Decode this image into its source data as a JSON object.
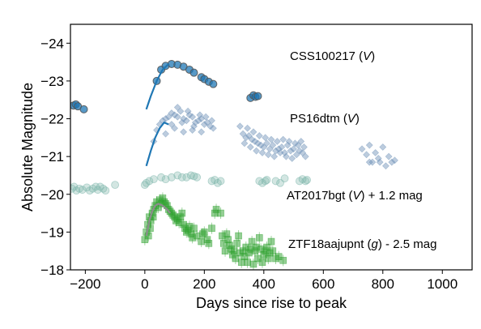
{
  "chart_data": {
    "type": "scatter",
    "title": "",
    "xlabel": "Days since rise to peak",
    "ylabel": "Absolute Magnitude",
    "xlim": [
      -250,
      1100
    ],
    "ylim": [
      -18,
      -24.5
    ],
    "y_inverted": true,
    "grid": false,
    "x_ticks": [
      "-200",
      "0",
      "200",
      "400",
      "600",
      "800",
      "1000"
    ],
    "y_ticks": [
      "-24",
      "-23",
      "-22",
      "-21",
      "-20",
      "-19",
      "-18"
    ],
    "annotations": [
      {
        "name": "CSS100217",
        "text_plain": "CSS100217 (",
        "text_italic": "V",
        "text_end": ")"
      },
      {
        "name": "PS16dtm",
        "text_plain": "PS16dtm (",
        "text_italic": "V",
        "text_end": ")"
      },
      {
        "name": "AT2017bgt",
        "text_plain": "AT2017bgt (",
        "text_italic": "V",
        "text_end": ") + 1.2 mag"
      },
      {
        "name": "ZTF18aajupnt",
        "text_plain": "ZTF18aajupnt (",
        "text_italic": "g",
        "text_end": ") - 2.5 mag"
      }
    ],
    "series": [
      {
        "name": "CSS100217",
        "marker": "circle",
        "color": "#1f77b4",
        "points": [
          [
            -240,
            -22.35
          ],
          [
            -232,
            -22.38
          ],
          [
            -225,
            -22.33
          ],
          [
            -205,
            -22.25
          ],
          [
            40,
            -23.0
          ],
          [
            55,
            -23.3
          ],
          [
            70,
            -23.4
          ],
          [
            90,
            -23.45
          ],
          [
            110,
            -23.43
          ],
          [
            130,
            -23.38
          ],
          [
            150,
            -23.3
          ],
          [
            165,
            -23.22
          ],
          [
            190,
            -23.1
          ],
          [
            200,
            -23.05
          ],
          [
            215,
            -22.98
          ],
          [
            230,
            -22.92
          ],
          [
            355,
            -22.55
          ],
          [
            365,
            -22.62
          ],
          [
            372,
            -22.58
          ],
          [
            380,
            -22.6
          ]
        ]
      },
      {
        "name": "CSS100217 fit",
        "marker": "line",
        "color": "#1f77b4",
        "points": [
          [
            5,
            -22.25
          ],
          [
            20,
            -22.6
          ],
          [
            40,
            -23.0
          ],
          [
            60,
            -23.3
          ],
          [
            80,
            -23.45
          ]
        ]
      },
      {
        "name": "PS16dtm",
        "marker": "diamond",
        "color": "#6b8fb5",
        "points": [
          [
            30,
            -21.4
          ],
          [
            40,
            -21.7
          ],
          [
            50,
            -21.85
          ],
          [
            60,
            -21.95
          ],
          [
            70,
            -22.0
          ],
          [
            80,
            -22.05
          ],
          [
            90,
            -22.15
          ],
          [
            100,
            -22.1
          ],
          [
            110,
            -22.05
          ],
          [
            120,
            -22.2
          ],
          [
            130,
            -22.0
          ],
          [
            140,
            -21.95
          ],
          [
            150,
            -22.1
          ],
          [
            160,
            -22.05
          ],
          [
            170,
            -21.9
          ],
          [
            180,
            -21.95
          ],
          [
            190,
            -22.0
          ],
          [
            200,
            -21.85
          ],
          [
            210,
            -21.9
          ],
          [
            220,
            -21.8
          ],
          [
            230,
            -21.75
          ],
          [
            90,
            -21.85
          ],
          [
            110,
            -22.3
          ],
          [
            125,
            -21.9
          ],
          [
            145,
            -22.2
          ],
          [
            165,
            -21.8
          ],
          [
            185,
            -22.1
          ],
          [
            205,
            -22.05
          ],
          [
            225,
            -21.95
          ],
          [
            70,
            -21.6
          ],
          [
            100,
            -21.75
          ],
          [
            130,
            -21.65
          ],
          [
            160,
            -21.7
          ],
          [
            190,
            -21.65
          ],
          [
            320,
            -21.8
          ],
          [
            330,
            -21.6
          ],
          [
            340,
            -21.5
          ],
          [
            350,
            -21.55
          ],
          [
            360,
            -21.45
          ],
          [
            370,
            -21.4
          ],
          [
            380,
            -21.35
          ],
          [
            390,
            -21.3
          ],
          [
            400,
            -21.25
          ],
          [
            410,
            -21.35
          ],
          [
            420,
            -21.2
          ],
          [
            430,
            -21.3
          ],
          [
            440,
            -21.15
          ],
          [
            450,
            -21.2
          ],
          [
            460,
            -21.25
          ],
          [
            470,
            -21.1
          ],
          [
            480,
            -21.3
          ],
          [
            490,
            -21.15
          ],
          [
            500,
            -21.2
          ],
          [
            510,
            -21.05
          ],
          [
            520,
            -21.15
          ],
          [
            530,
            -21.1
          ],
          [
            540,
            -21.0
          ],
          [
            335,
            -21.35
          ],
          [
            355,
            -21.25
          ],
          [
            375,
            -21.15
          ],
          [
            395,
            -21.1
          ],
          [
            415,
            -21.05
          ],
          [
            435,
            -21.0
          ],
          [
            455,
            -21.1
          ],
          [
            475,
            -21.0
          ],
          [
            495,
            -20.95
          ],
          [
            515,
            -21.3
          ],
          [
            535,
            -21.25
          ],
          [
            345,
            -21.75
          ],
          [
            365,
            -21.65
          ],
          [
            385,
            -21.55
          ],
          [
            405,
            -21.5
          ],
          [
            425,
            -21.45
          ],
          [
            445,
            -21.4
          ],
          [
            465,
            -21.45
          ],
          [
            485,
            -21.4
          ],
          [
            505,
            -21.35
          ],
          [
            525,
            -21.4
          ],
          [
            730,
            -21.2
          ],
          [
            745,
            -21.05
          ],
          [
            755,
            -21.3
          ],
          [
            765,
            -20.85
          ],
          [
            775,
            -21.1
          ],
          [
            785,
            -20.95
          ],
          [
            800,
            -21.25
          ],
          [
            810,
            -20.75
          ],
          [
            820,
            -21.0
          ],
          [
            830,
            -20.85
          ],
          [
            840,
            -20.9
          ],
          [
            755,
            -20.85
          ],
          [
            790,
            -20.85
          ]
        ]
      },
      {
        "name": "PS16dtm fit",
        "marker": "line",
        "color": "#1f77b4",
        "points": [
          [
            5,
            -20.75
          ],
          [
            20,
            -21.15
          ],
          [
            35,
            -21.5
          ],
          [
            50,
            -21.75
          ],
          [
            65,
            -21.9
          ],
          [
            80,
            -21.85
          ]
        ]
      },
      {
        "name": "AT2017bgt",
        "marker": "circle",
        "color": "#80b8ad",
        "points": [
          [
            -245,
            -20.15
          ],
          [
            -238,
            -20.2
          ],
          [
            -230,
            -20.1
          ],
          [
            -220,
            -20.15
          ],
          [
            -210,
            -20.12
          ],
          [
            -195,
            -20.18
          ],
          [
            -185,
            -20.1
          ],
          [
            -175,
            -20.15
          ],
          [
            -165,
            -20.2
          ],
          [
            -158,
            -20.12
          ],
          [
            -150,
            -20.2
          ],
          [
            -140,
            -20.15
          ],
          [
            -132,
            -20.1
          ],
          [
            -100,
            -20.25
          ],
          [
            0,
            -20.25
          ],
          [
            5,
            -20.3
          ],
          [
            15,
            -20.35
          ],
          [
            30,
            -20.4
          ],
          [
            55,
            -20.45
          ],
          [
            70,
            -20.4
          ],
          [
            90,
            -20.45
          ],
          [
            110,
            -20.5
          ],
          [
            125,
            -20.45
          ],
          [
            140,
            -20.45
          ],
          [
            155,
            -20.5
          ],
          [
            165,
            -20.48
          ],
          [
            175,
            -20.45
          ],
          [
            225,
            -20.35
          ],
          [
            235,
            -20.38
          ],
          [
            245,
            -20.3
          ],
          [
            255,
            -20.35
          ],
          [
            385,
            -20.35
          ],
          [
            395,
            -20.3
          ],
          [
            405,
            -20.35
          ],
          [
            410,
            -20.38
          ],
          [
            440,
            -20.35
          ],
          [
            455,
            -20.3
          ],
          [
            470,
            -20.42
          ],
          [
            520,
            -20.35
          ],
          [
            530,
            -20.4
          ],
          [
            540,
            -20.35
          ],
          [
            545,
            -20.38
          ]
        ]
      },
      {
        "name": "ZTF18aajupnt",
        "marker": "square",
        "color": "#2ca02c",
        "points": [
          [
            0,
            -18.8
          ],
          [
            5,
            -19.0
          ],
          [
            10,
            -19.2
          ],
          [
            12,
            -18.9
          ],
          [
            15,
            -19.4
          ],
          [
            18,
            -19.1
          ],
          [
            20,
            -19.3
          ],
          [
            25,
            -19.5
          ],
          [
            28,
            -19.4
          ],
          [
            30,
            -19.6
          ],
          [
            35,
            -19.7
          ],
          [
            40,
            -19.8
          ],
          [
            45,
            -19.65
          ],
          [
            50,
            -19.85
          ],
          [
            55,
            -19.75
          ],
          [
            60,
            -19.9
          ],
          [
            65,
            -19.8
          ],
          [
            70,
            -19.75
          ],
          [
            75,
            -19.7
          ],
          [
            80,
            -19.6
          ],
          [
            85,
            -19.55
          ],
          [
            90,
            -19.5
          ],
          [
            95,
            -19.45
          ],
          [
            100,
            -19.4
          ],
          [
            105,
            -19.3
          ],
          [
            110,
            -19.35
          ],
          [
            115,
            -19.25
          ],
          [
            120,
            -19.4
          ],
          [
            125,
            -19.5
          ],
          [
            130,
            -19.2
          ],
          [
            135,
            -19.1
          ],
          [
            140,
            -19.0
          ],
          [
            145,
            -19.05
          ],
          [
            150,
            -19.15
          ],
          [
            155,
            -18.95
          ],
          [
            160,
            -18.85
          ],
          [
            165,
            -19.1
          ],
          [
            175,
            -18.9
          ],
          [
            190,
            -18.75
          ],
          [
            195,
            -18.95
          ],
          [
            200,
            -19.0
          ],
          [
            210,
            -18.8
          ],
          [
            215,
            -18.7
          ],
          [
            225,
            -19.1
          ],
          [
            235,
            -19.5
          ],
          [
            240,
            -19.6
          ],
          [
            255,
            -19.5
          ],
          [
            260,
            -18.9
          ],
          [
            265,
            -18.7
          ],
          [
            270,
            -18.5
          ],
          [
            280,
            -18.8
          ],
          [
            285,
            -18.65
          ],
          [
            290,
            -18.55
          ],
          [
            295,
            -18.4
          ],
          [
            300,
            -18.5
          ],
          [
            305,
            -18.3
          ],
          [
            310,
            -18.7
          ],
          [
            320,
            -18.45
          ],
          [
            325,
            -18.2
          ],
          [
            330,
            -18.5
          ],
          [
            335,
            -18.35
          ],
          [
            340,
            -18.6
          ],
          [
            345,
            -18.2
          ],
          [
            350,
            -18.45
          ],
          [
            355,
            -18.55
          ],
          [
            360,
            -18.75
          ],
          [
            370,
            -18.5
          ],
          [
            375,
            -18.6
          ],
          [
            380,
            -18.3
          ],
          [
            390,
            -18.55
          ],
          [
            395,
            -18.2
          ],
          [
            400,
            -18.4
          ],
          [
            405,
            -18.5
          ],
          [
            410,
            -18.6
          ],
          [
            415,
            -18.3
          ],
          [
            420,
            -18.45
          ],
          [
            425,
            -18.75
          ],
          [
            430,
            -18.5
          ],
          [
            440,
            -18.3
          ],
          [
            450,
            -18.35
          ],
          [
            465,
            -18.25
          ],
          [
            275,
            -18.95
          ],
          [
            315,
            -18.9
          ],
          [
            365,
            -18.15
          ],
          [
            385,
            -18.85
          ]
        ]
      },
      {
        "name": "ZTF18aajupnt fit",
        "marker": "line",
        "color": "#8c8c8c",
        "points": [
          [
            5,
            -18.9
          ],
          [
            15,
            -19.3
          ],
          [
            25,
            -19.55
          ],
          [
            35,
            -19.7
          ],
          [
            45,
            -19.75
          ],
          [
            60,
            -19.7
          ],
          [
            75,
            -19.6
          ],
          [
            85,
            -19.5
          ]
        ]
      }
    ]
  }
}
